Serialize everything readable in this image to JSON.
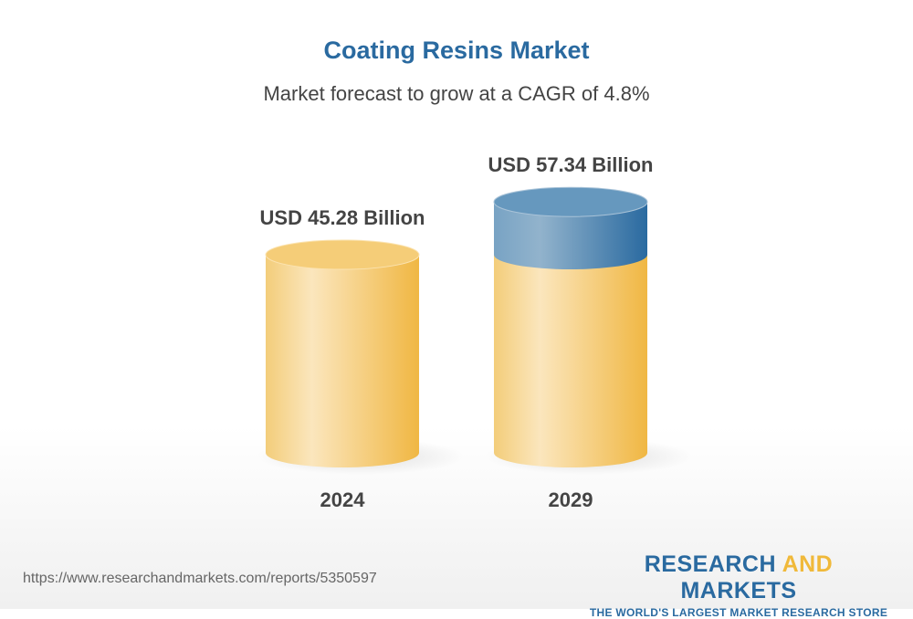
{
  "chart_data": {
    "type": "bar",
    "title": "Coating Resins Market",
    "subtitle": "Market forecast to grow at a CAGR of 4.8%",
    "categories": [
      "2024",
      "2029"
    ],
    "values": [
      45.28,
      57.34
    ],
    "unit": "USD Billion",
    "data_labels": [
      "USD 45.28 Billion",
      "USD 57.34 Billion"
    ],
    "colors": {
      "base": "#f0b93a",
      "growth": "#2a6aa0",
      "title": "#2a6aa0"
    }
  },
  "footer": {
    "url": "https://www.researchandmarkets.com/reports/5350597",
    "logo_part1": "RESEARCH ",
    "logo_part2": "AND",
    "logo_part3": " MARKETS",
    "tagline": "THE WORLD'S LARGEST MARKET RESEARCH STORE"
  }
}
